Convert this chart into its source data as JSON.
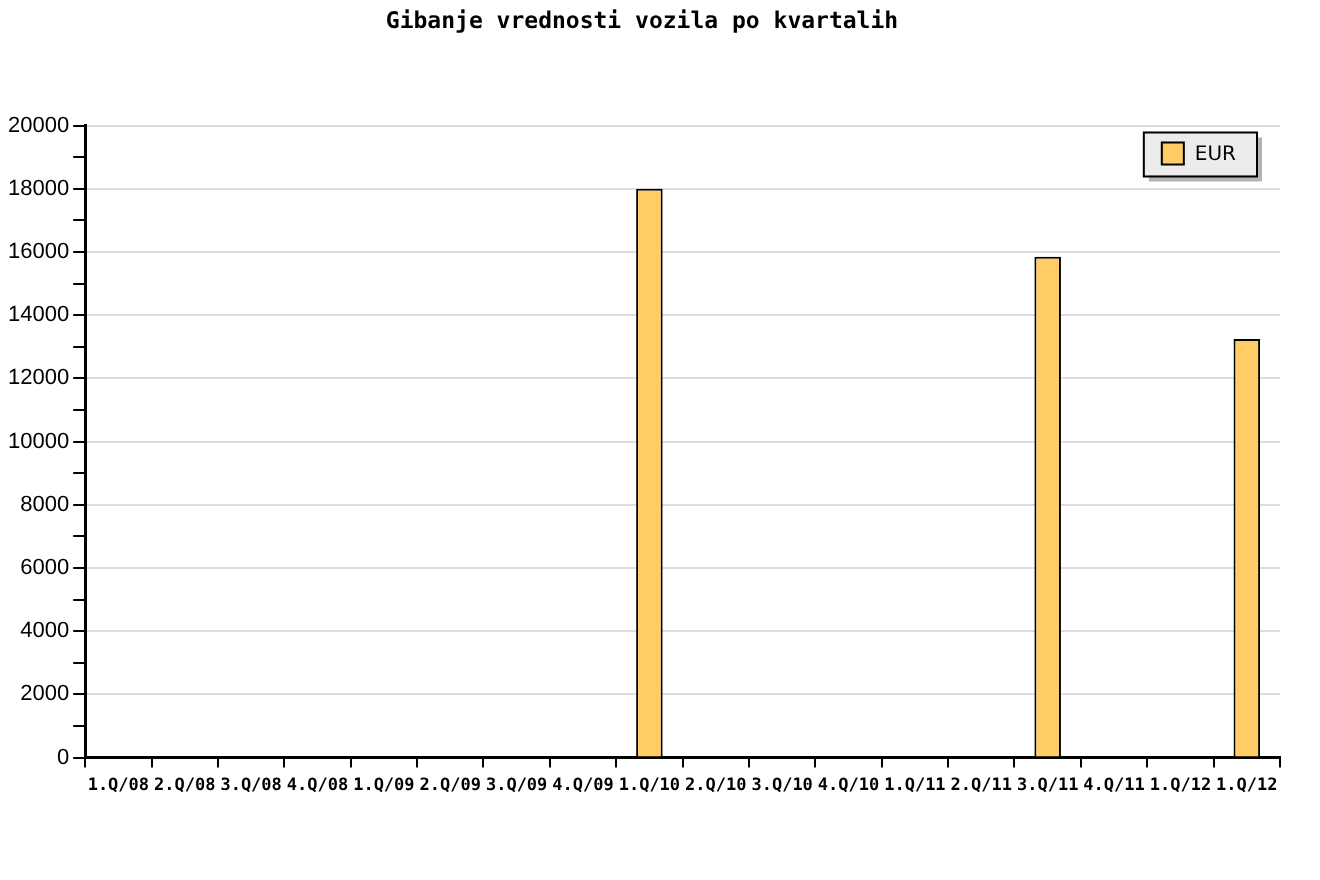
{
  "chart_data": {
    "type": "bar",
    "title": "Gibanje vrednosti vozila po kvartalih",
    "categories": [
      "1.Q/08",
      "2.Q/08",
      "3.Q/08",
      "4.Q/08",
      "1.Q/09",
      "2.Q/09",
      "3.Q/09",
      "4.Q/09",
      "1.Q/10",
      "2.Q/10",
      "3.Q/10",
      "4.Q/10",
      "1.Q/11",
      "2.Q/11",
      "3.Q/11",
      "4.Q/11",
      "1.Q/12",
      "1.Q/12"
    ],
    "series": [
      {
        "name": "EUR",
        "color": "#ffcc66",
        "values": [
          null,
          null,
          null,
          null,
          null,
          null,
          null,
          null,
          18000,
          null,
          null,
          null,
          null,
          null,
          15850,
          null,
          null,
          13250
        ]
      }
    ],
    "ylim": [
      0,
      20000
    ],
    "yticks": [
      0,
      {
        "value": 1000,
        "label": null
      },
      2000,
      {
        "value": 3000,
        "label": null
      },
      4000,
      {
        "value": 5000,
        "label": null
      },
      6000,
      {
        "value": 7000,
        "label": null
      },
      8000,
      {
        "value": 9000,
        "label": null
      },
      10000,
      {
        "value": 11000,
        "label": null
      },
      12000,
      {
        "value": 13000,
        "label": null
      },
      14000,
      {
        "value": 15000,
        "label": null
      },
      16000,
      {
        "value": 17000,
        "label": null
      },
      18000,
      {
        "value": 19000,
        "label": null
      },
      20000
    ],
    "grid": "y",
    "legend": "top right"
  }
}
